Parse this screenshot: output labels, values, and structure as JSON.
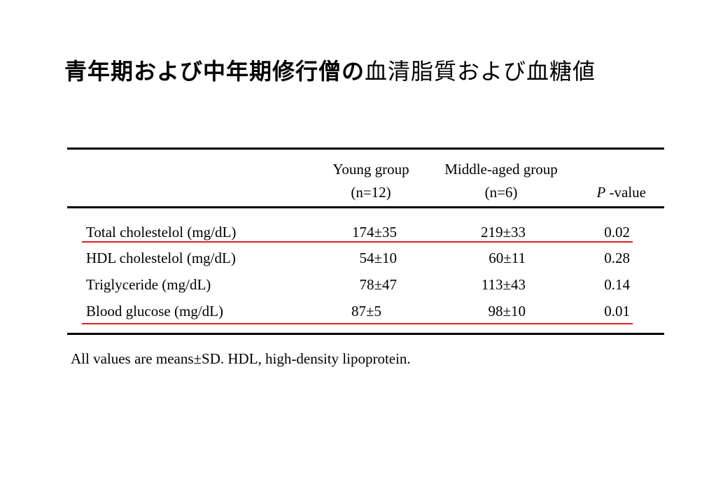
{
  "title": {
    "bold_part": "青年期および中年期修行僧の",
    "normal_part": "血清脂質および血糖値"
  },
  "table": {
    "header": {
      "young_line1": "Young group",
      "young_line2": "(n=12)",
      "middle_line1": "Middle-aged group",
      "middle_line2": "(n=6)",
      "p_symbol": "P",
      "p_suffix": " -value"
    },
    "rows": [
      {
        "label": "Total cholestelol (mg/dL)",
        "young": "174±35",
        "middle": "219±33",
        "p": "0.02"
      },
      {
        "label": "HDL cholestelol (mg/dL)",
        "young": "54±10",
        "middle": "60±11",
        "p": "0.28"
      },
      {
        "label": "Triglyceride (mg/dL)",
        "young": "78±47",
        "middle": "113±43",
        "p": "0.14"
      },
      {
        "label": "Blood glucose (mg/dL)",
        "young": "87±5",
        "middle": "98±10",
        "p": "0.01"
      }
    ],
    "highlighted_rows": [
      "Total cholestelol (mg/dL)",
      "Blood glucose (mg/dL)"
    ],
    "highlight_color": "#e02020"
  },
  "footnote": "All values are means±SD. HDL, high-density lipoprotein."
}
